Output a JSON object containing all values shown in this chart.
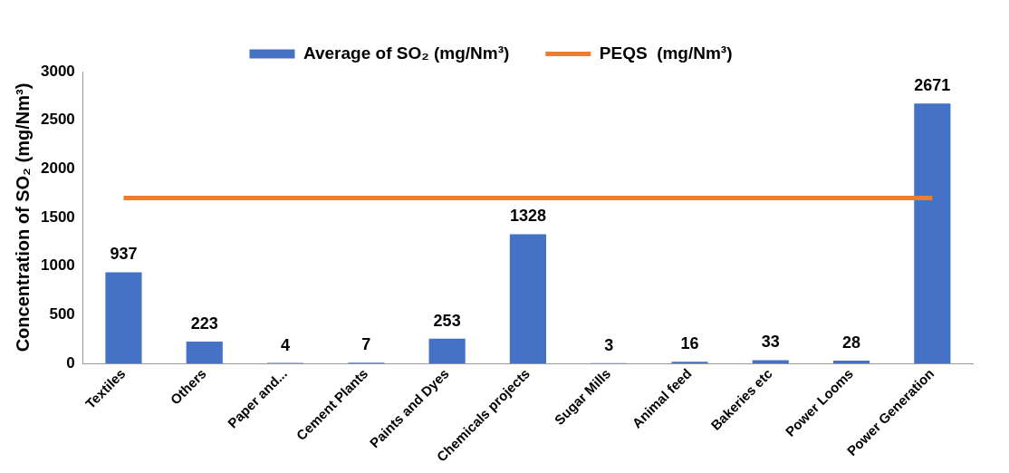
{
  "chart_data": {
    "type": "bar",
    "ylabel": "Concentration of SO₂ (mg/Nm³)",
    "categories": [
      "Textiles",
      "Others",
      "Paper and...",
      "Cement Plants",
      "Paints and Dyes",
      "Chemicals projects",
      "Sugar Mills",
      "Animal feed",
      "Bakeries etc",
      "Power Looms",
      "Power Generation"
    ],
    "series": [
      {
        "name": "Average of SO₂ (mg/Nm³)",
        "color": "#4472c4",
        "values": [
          937,
          223,
          4,
          7,
          253,
          1328,
          3,
          16,
          33,
          28,
          2671
        ],
        "value_labels": [
          "937",
          "223",
          "4",
          "7",
          "253",
          "1328",
          "3",
          "16",
          "33",
          "28",
          "2671"
        ]
      },
      {
        "name": "PEQS  (mg/Nm³)",
        "type": "line",
        "color": "#ed7d31",
        "marker": "none",
        "values": [
          1700,
          1700,
          1700,
          1700,
          1700,
          1700,
          1700,
          1700,
          1700,
          1700,
          1700
        ]
      }
    ],
    "ylim": [
      0,
      3000
    ],
    "yticks": [
      0,
      500,
      1000,
      1500,
      2000,
      2500,
      3000
    ],
    "grid": false,
    "legend": "top"
  }
}
